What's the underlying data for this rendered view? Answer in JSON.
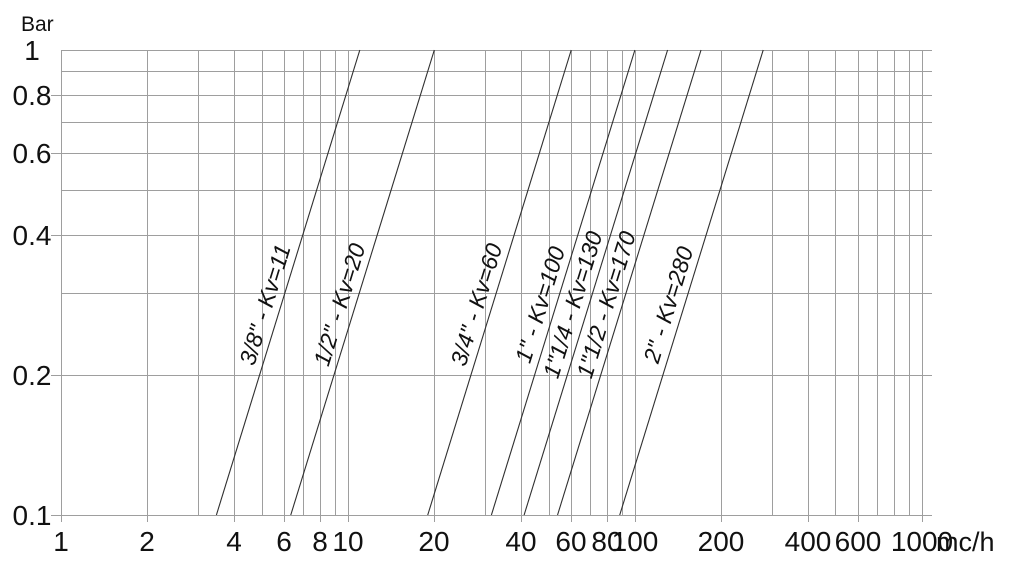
{
  "chart_data": {
    "type": "line",
    "title": "",
    "xlabel": "mc/h",
    "ylabel": "Bar",
    "x_axis": {
      "scale": "log",
      "min": 1,
      "max": 1085,
      "labeled_ticks": [
        1,
        2,
        4,
        6,
        8,
        10,
        20,
        40,
        60,
        80,
        100,
        200,
        400,
        600,
        1000
      ],
      "gridlines": [
        1,
        2,
        3,
        4,
        5,
        6,
        7,
        8,
        9,
        10,
        20,
        30,
        40,
        50,
        60,
        70,
        80,
        90,
        100,
        200,
        300,
        400,
        500,
        600,
        700,
        800,
        900,
        1000
      ]
    },
    "y_axis": {
      "scale": "log",
      "min": 0.1,
      "max": 1,
      "labeled_ticks": [
        1,
        0.8,
        0.6,
        0.4,
        0.2,
        0.1
      ],
      "gridlines": [
        0.1,
        0.2,
        0.3,
        0.4,
        0.5,
        0.6,
        0.7,
        0.8,
        0.9,
        1
      ]
    },
    "series": [
      {
        "label": "3/8\" - Kv=11",
        "kv": 11,
        "points": [
          [
            3.48,
            0.1
          ],
          [
            11,
            1
          ]
        ]
      },
      {
        "label": "1/2\" - Kv=20",
        "kv": 20,
        "points": [
          [
            6.32,
            0.1
          ],
          [
            20,
            1
          ]
        ]
      },
      {
        "label": "3/4\" - Kv=60",
        "kv": 60,
        "points": [
          [
            18.97,
            0.1
          ],
          [
            60,
            1
          ]
        ]
      },
      {
        "label": "1\" - Kv=100",
        "kv": 100,
        "points": [
          [
            31.62,
            0.1
          ],
          [
            100,
            1
          ]
        ]
      },
      {
        "label": "1\"1/4 - Kv=130",
        "kv": 130,
        "points": [
          [
            41.11,
            0.1
          ],
          [
            130,
            1
          ]
        ]
      },
      {
        "label": "1\"1/2 - Kv=170",
        "kv": 170,
        "points": [
          [
            53.76,
            0.1
          ],
          [
            170,
            1
          ]
        ]
      },
      {
        "label": "2\" - Kv=280",
        "kv": 280,
        "points": [
          [
            88.54,
            0.1
          ],
          [
            280,
            1
          ]
        ]
      }
    ],
    "colors": {
      "background": "#ffffff",
      "grid": "#9e9e9e",
      "series_line": "#2f2f2f",
      "text": "#111111"
    }
  }
}
